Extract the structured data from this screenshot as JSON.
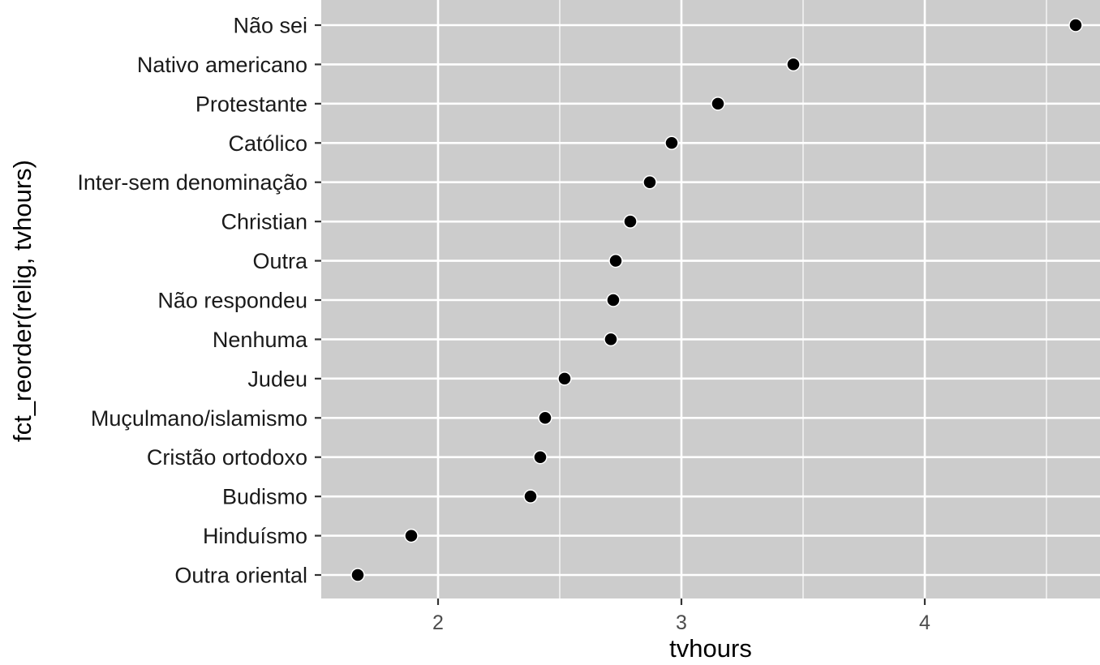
{
  "chart_data": {
    "type": "scatter",
    "xlabel": "tvhours",
    "ylabel": "fct_reorder(relig, tvhours)",
    "xlim": [
      1.52,
      4.72
    ],
    "xticks": [
      2,
      3,
      4
    ],
    "x_minor_ticks": [
      2.5,
      3.5,
      4.5
    ],
    "grid": true,
    "categories": [
      "Outra oriental",
      "Hinduísmo",
      "Budismo",
      "Cristão ortodoxo",
      "Muçulmano/islamismo",
      "Judeu",
      "Nenhuma",
      "Não respondeu",
      "Outra",
      "Christian",
      "Inter-sem denominação",
      "Católico",
      "Protestante",
      "Nativo americano",
      "Não sei"
    ],
    "values": [
      1.67,
      1.89,
      2.38,
      2.42,
      2.44,
      2.52,
      2.71,
      2.72,
      2.73,
      2.79,
      2.87,
      2.96,
      3.15,
      3.46,
      4.62
    ],
    "colors": {
      "panel": "#cccccc",
      "grid": "#ffffff",
      "point": "#000000",
      "point_stroke": "#ffffff"
    }
  }
}
